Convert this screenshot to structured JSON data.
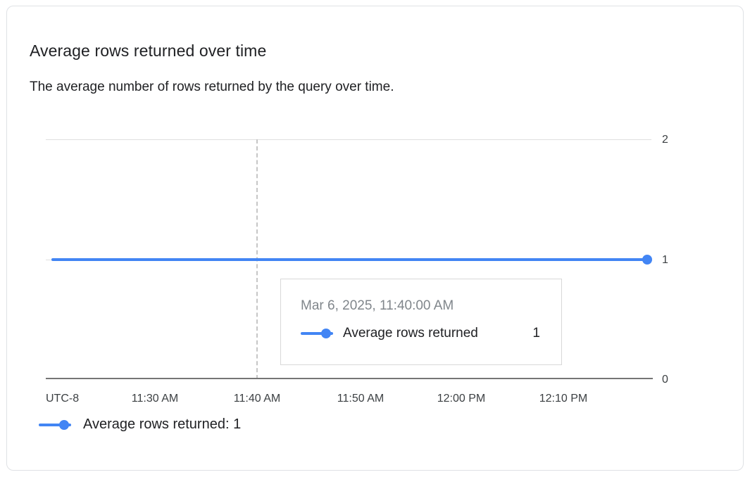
{
  "card": {
    "title": "Average rows returned over time",
    "subtitle": "The average number of rows returned by the query over time."
  },
  "chart_data": {
    "type": "line",
    "title": "Average rows returned over time",
    "x_axis": {
      "timezone_label": "UTC-8",
      "tick_labels": [
        "11:30 AM",
        "11:40 AM",
        "11:50 AM",
        "12:00 PM",
        "12:10 PM"
      ]
    },
    "y_axis": {
      "tick_labels": [
        "2",
        "1",
        "0"
      ],
      "range": [
        0,
        2
      ],
      "side": "right"
    },
    "series": [
      {
        "name": "Average rows returned",
        "color": "#4285f4",
        "x": [
          "11:30 AM",
          "11:40 AM",
          "11:50 AM",
          "12:00 PM",
          "12:10 PM"
        ],
        "values": [
          1,
          1,
          1,
          1,
          1
        ]
      }
    ],
    "crosshair": {
      "x": "11:40 AM",
      "style": "dashed"
    },
    "grid": true,
    "legend_position": "bottom"
  },
  "tooltip": {
    "timestamp": "Mar 6, 2025, 11:40:00 AM",
    "rows": [
      {
        "label": "Average rows returned",
        "value": "1",
        "color": "#4285f4"
      }
    ]
  },
  "legend": {
    "items": [
      {
        "label": "Average rows returned: 1",
        "color": "#4285f4"
      }
    ]
  },
  "colors": {
    "series_blue": "#4285f4",
    "grid_line": "#e0e0e0",
    "axis_line": "#757575",
    "crosshair": "#c6c6c6",
    "tooltip_border": "#d8d8d8",
    "card_border": "#dfe1e5",
    "title_text": "#202124",
    "muted_text": "#80868b",
    "tick_text": "#3c4043"
  }
}
